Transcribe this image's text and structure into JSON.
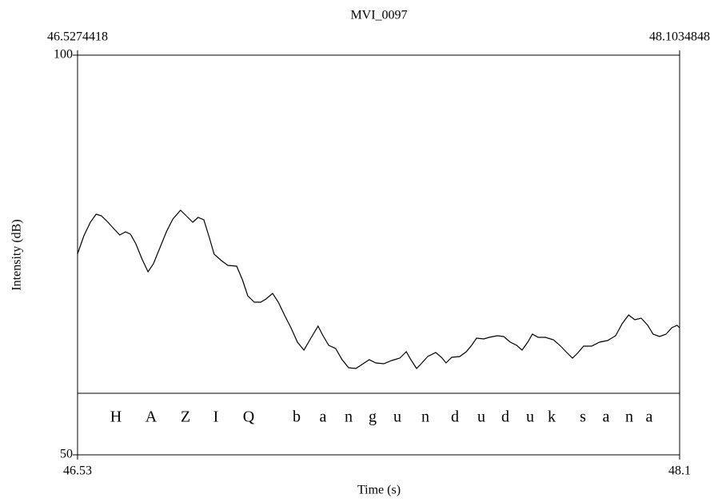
{
  "chart_data": {
    "type": "line",
    "title": "MVI_0097",
    "x_label": "Time (s)",
    "y_label": "Intensity (dB)",
    "xlim": [
      46.5274418,
      48.1034848
    ],
    "xticks": [
      {
        "value": 46.5274418,
        "label": "46.53"
      },
      {
        "value": 48.1034848,
        "label": "48.1"
      }
    ],
    "ylim": [
      50,
      100
    ],
    "yticks": [
      50,
      100
    ],
    "grid": false,
    "x": [
      46.527,
      46.544,
      46.561,
      46.576,
      46.59,
      46.607,
      46.624,
      46.638,
      46.653,
      46.666,
      46.68,
      46.697,
      46.712,
      46.726,
      46.743,
      46.76,
      46.777,
      46.797,
      46.812,
      46.829,
      46.843,
      46.858,
      46.871,
      46.885,
      46.904,
      46.921,
      46.944,
      46.959,
      46.973,
      46.99,
      47.007,
      47.021,
      47.038,
      47.053,
      47.07,
      47.086,
      47.103,
      47.12,
      47.137,
      47.157,
      47.17,
      47.185,
      47.203,
      47.22,
      47.237,
      47.256,
      47.275,
      47.291,
      47.308,
      47.329,
      47.35,
      47.371,
      47.388,
      47.4,
      47.415,
      47.427,
      47.444,
      47.465,
      47.48,
      47.492,
      47.507,
      47.528,
      47.545,
      47.559,
      47.572,
      47.591,
      47.605,
      47.626,
      47.643,
      47.66,
      47.677,
      47.691,
      47.706,
      47.718,
      47.733,
      47.752,
      47.773,
      47.79,
      47.806,
      47.823,
      47.836,
      47.852,
      47.873,
      47.894,
      47.915,
      47.936,
      47.953,
      47.97,
      47.986,
      48.003,
      48.02,
      48.034,
      48.051,
      48.068,
      48.083,
      48.097,
      48.103
    ],
    "series": [
      {
        "color": "#000000",
        "values": [
          75.1,
          77.4,
          79.1,
          80.1,
          79.9,
          79.1,
          78.2,
          77.5,
          77.9,
          77.6,
          76.4,
          74.4,
          72.9,
          73.9,
          75.9,
          77.9,
          79.5,
          80.6,
          79.9,
          79.1,
          79.7,
          79.4,
          77.4,
          75.1,
          74.3,
          73.7,
          73.6,
          71.9,
          69.9,
          69.1,
          69.1,
          69.5,
          70.2,
          69.1,
          67.4,
          65.9,
          64.1,
          63.1,
          64.5,
          66.1,
          64.9,
          63.7,
          63.3,
          61.9,
          60.9,
          60.8,
          61.4,
          61.9,
          61.5,
          61.4,
          61.8,
          62.1,
          62.9,
          61.9,
          60.8,
          61.4,
          62.3,
          62.8,
          62.2,
          61.5,
          62.2,
          62.3,
          62.9,
          63.7,
          64.6,
          64.5,
          64.7,
          64.9,
          64.8,
          64.1,
          63.7,
          63.1,
          64.1,
          65.1,
          64.7,
          64.7,
          64.4,
          63.7,
          62.9,
          62.1,
          62.7,
          63.6,
          63.6,
          64.1,
          64.3,
          64.9,
          66.4,
          67.5,
          66.9,
          67.1,
          66.2,
          65.1,
          64.8,
          65.1,
          65.9,
          66.2,
          65.9
        ]
      }
    ],
    "tier_labels": [
      "H",
      "A",
      "Z",
      "I",
      "Q",
      "b",
      "a",
      "n",
      "g",
      "u",
      "n",
      "d",
      "u",
      "d",
      "u",
      "k",
      "s",
      "a",
      "n",
      "a"
    ]
  }
}
